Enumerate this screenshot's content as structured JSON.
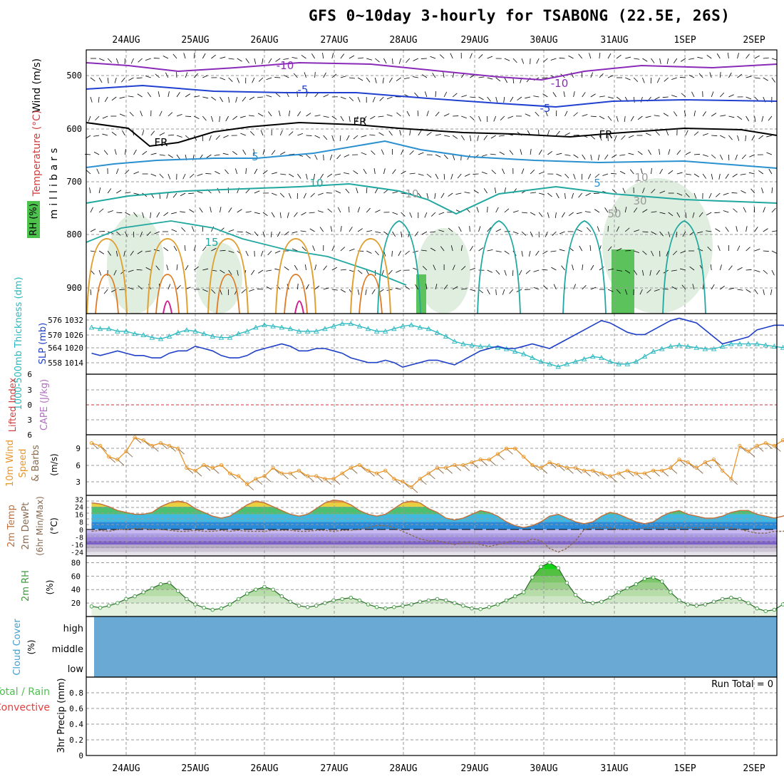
{
  "title": "GFS 0~10day 3-hourly for TSABONG (22.5E, 26S)",
  "dates": [
    "24AUG",
    "25AUG",
    "26AUG",
    "27AUG",
    "28AUG",
    "29AUG",
    "30AUG",
    "31AUG",
    "1SEP",
    "2SEP"
  ],
  "colors": {
    "grid": "#9a9a9a",
    "zero_line": "#d03030",
    "slp": "#1f3fc8",
    "thickness": "#2ab8c0",
    "wind10m": "#e8962a",
    "barb10m": "#8a6a4a",
    "temp_fill": "#c0703a",
    "dewpt": "#8a6a50",
    "rh2m": "#3c9a3c",
    "cloud": "#6aa9d4"
  },
  "panels": {
    "upper": {
      "ylabel_wind": "Wind (m/s)",
      "ylabel_temp": "Temperature (°C)",
      "ylabel_rh": "RH (%)",
      "ylabel_p": "millibars",
      "ticks": [
        "500",
        "600",
        "700",
        "800",
        "900"
      ],
      "contour_labels": [
        {
          "t": "-10",
          "c": "#8a2ab8"
        },
        {
          "t": "-10",
          "c": "#8a2ab8"
        },
        {
          "t": "-5",
          "c": "#2040d0"
        },
        {
          "t": "-5",
          "c": "#2040d0"
        },
        {
          "t": "FR",
          "c": "#000000"
        },
        {
          "t": "FR",
          "c": "#000000"
        },
        {
          "t": "FR",
          "c": "#000000"
        },
        {
          "t": "5",
          "c": "#2a90d0"
        },
        {
          "t": "5",
          "c": "#2a90d0"
        },
        {
          "t": "10",
          "c": "#20a8a0"
        },
        {
          "t": "15",
          "c": "#20a8a0"
        },
        {
          "t": "10",
          "c": "#999999"
        },
        {
          "t": "10",
          "c": "#999999"
        },
        {
          "t": "50",
          "c": "#999999"
        },
        {
          "t": "30",
          "c": "#999999"
        }
      ]
    },
    "slp": {
      "ylabel_thick": "1000-500mb Thickness (dm)",
      "ylabel_slp": "SLP (mb)",
      "ticks_thick": [
        "576",
        "570",
        "564",
        "558"
      ],
      "ticks_slp": [
        "1032",
        "1026",
        "1020",
        "1014"
      ]
    },
    "cape": {
      "ylabel_li": "Lifted Index",
      "ylabel_cape": "CAPE (J/kg)",
      "ticks": [
        "6",
        "3",
        "0",
        "3",
        "6"
      ]
    },
    "wind": {
      "ylabel1": "10m Wind",
      "ylabel2": "Speed",
      "ylabel3": "& Barbs",
      "ylabel_unit": "(m/s)",
      "ticks": [
        "9",
        "6",
        "3"
      ]
    },
    "temp": {
      "ylabel1": "2m Temp",
      "ylabel2": "2m DewPt",
      "ylabel3": "(6hr Min/Max)",
      "ylabel_unit": "(°C)",
      "ticks": [
        "32",
        "24",
        "16",
        "8",
        "0",
        "-8",
        "-16",
        "-24"
      ]
    },
    "rh": {
      "ylabel": "2m RH",
      "ylabel_unit": "(%)",
      "ticks": [
        "80",
        "60",
        "40",
        "20"
      ]
    },
    "cloud": {
      "ylabel": "Cloud Cover",
      "ylabel_unit": "(%)",
      "levels": [
        "high",
        "middle",
        "low"
      ]
    },
    "precip": {
      "ylabel_total": "Total / Rain",
      "ylabel_conv": "Convective",
      "ylabel_precip": "3hr Precip (mm)",
      "ticks": [
        "0.8",
        "0.6",
        "0.4",
        "0.2",
        "0"
      ],
      "run_total": "Run Total = 0"
    }
  },
  "chart_data": [
    {
      "type": "line",
      "name": "slp_thickness",
      "x_unit": "3-hour step from 23 AUG 12Z",
      "series": [
        {
          "name": "SLP (mb)",
          "values": [
            1017,
            1016,
            1017,
            1018,
            1017,
            1016,
            1016,
            1015,
            1015,
            1017,
            1018,
            1018,
            1020,
            1019,
            1018,
            1016,
            1015,
            1015,
            1016,
            1018,
            1019,
            1020,
            1021,
            1020,
            1018,
            1018,
            1019,
            1019,
            1018,
            1017,
            1015,
            1014,
            1013,
            1013,
            1014,
            1013,
            1011,
            1012,
            1013,
            1014,
            1014,
            1013,
            1012,
            1014,
            1016,
            1018,
            1019,
            1020,
            1019,
            1019,
            1020,
            1021,
            1020,
            1019,
            1021,
            1023,
            1025,
            1027,
            1029,
            1031,
            1030,
            1028,
            1026,
            1025,
            1025,
            1027,
            1029,
            1031,
            1032,
            1031,
            1030,
            1027,
            1024,
            1021,
            1022,
            1023,
            1024,
            1027,
            1028,
            1029,
            1029,
            1028,
            1027,
            1026,
            1026,
            1027,
            1028,
            1029,
            1030,
            1029,
            1027,
            1024,
            1025,
            1026,
            1027,
            1028,
            1029
          ]
        },
        {
          "name": "1000-500mb Thickness (dm)",
          "values": [
            572.5,
            572,
            572,
            571,
            571,
            570,
            569.5,
            568.5,
            568,
            569,
            570.5,
            571.5,
            571,
            570,
            569,
            568.5,
            568.5,
            570,
            571,
            572.5,
            573.5,
            573,
            572.5,
            572,
            571,
            571,
            571,
            572,
            573,
            574,
            574,
            573,
            572,
            571,
            571,
            572,
            573,
            573.5,
            572.5,
            572,
            570.5,
            569,
            567,
            566,
            565.5,
            565,
            565,
            564.5,
            564,
            563,
            562,
            560.5,
            559,
            558,
            557,
            558,
            559,
            560,
            561,
            560.5,
            559,
            558,
            558,
            559,
            561,
            563,
            564,
            565,
            565.5,
            565,
            564.5,
            564,
            564,
            565,
            566,
            566,
            566,
            566,
            565.5,
            565,
            564.5,
            564.5,
            565,
            566,
            567,
            568,
            568,
            567,
            566,
            566,
            566.5,
            567,
            567,
            566.5,
            566,
            565.5,
            565
          ]
        }
      ],
      "ylim_slp": [
        1008,
        1034
      ],
      "ylim_thickness": [
        554,
        578
      ]
    },
    {
      "type": "line",
      "name": "wind10m",
      "series": [
        {
          "name": "10m Wind Speed (m/s)",
          "values": [
            9.5,
            9,
            7,
            6.5,
            8,
            10.5,
            10,
            9,
            9.5,
            9,
            8.5,
            5,
            4.5,
            5.5,
            5,
            5.5,
            4,
            3.5,
            2,
            3,
            3.5,
            5,
            4,
            4,
            4.5,
            3.5,
            3.5,
            3,
            3,
            4,
            5,
            5.5,
            4.5,
            4,
            4.5,
            3,
            2.5,
            1.5,
            3,
            4,
            5,
            5,
            5.5,
            5.5,
            6,
            6.5,
            6.5,
            7.5,
            8.5,
            8.5,
            7,
            5.5,
            5,
            6,
            5.5,
            5,
            5,
            4.5,
            4.5,
            4,
            3.5,
            4,
            4.5,
            4,
            4,
            4.5,
            4.5,
            5,
            6.5,
            6,
            5,
            6,
            6.5,
            4.5,
            3,
            9,
            8,
            9,
            9.5,
            9,
            10,
            9.5,
            10,
            10.5,
            10,
            8.5,
            7.5,
            6.5,
            8,
            8.5,
            9.5,
            9.5,
            8,
            6,
            5,
            5,
            5.5,
            6,
            5.5
          ]
        }
      ],
      "ylim": [
        0,
        11
      ]
    },
    {
      "type": "area",
      "name": "temp2m",
      "series": [
        {
          "name": "2m Temp (°C)",
          "values": [
            28,
            27,
            24,
            20,
            18,
            16,
            16,
            18,
            24,
            28,
            30,
            28,
            22,
            18,
            14,
            12,
            14,
            20,
            26,
            30,
            28,
            24,
            20,
            16,
            14,
            16,
            22,
            28,
            31,
            30,
            26,
            20,
            16,
            14,
            16,
            22,
            28,
            30,
            28,
            22,
            18,
            12,
            10,
            12,
            16,
            20,
            18,
            14,
            8,
            4,
            2,
            4,
            8,
            14,
            16,
            12,
            8,
            6,
            8,
            14,
            18,
            16,
            12,
            8,
            6,
            8,
            14,
            18,
            20,
            16,
            14,
            12,
            12,
            14,
            18,
            20,
            20,
            16,
            14,
            12,
            14,
            18,
            22,
            22,
            20,
            16,
            14,
            12,
            14
          ]
        },
        {
          "name": "2m DewPt (°C)",
          "values": [
            -2,
            -1,
            -2,
            0,
            0,
            1,
            1,
            0,
            0,
            -1,
            -2,
            -2,
            -1,
            -2,
            -2,
            -1,
            -2,
            -1,
            -2,
            -2,
            -2,
            -1,
            -1,
            -1,
            -2,
            -2,
            -1,
            -1,
            -2,
            -1,
            -1,
            0,
            2,
            4,
            4,
            2,
            -2,
            -6,
            -10,
            -12,
            -12,
            -14,
            -16,
            -14,
            -14,
            -16,
            -18,
            -16,
            -14,
            -12,
            -14,
            -10,
            -12,
            -20,
            -24,
            -20,
            -12,
            0,
            2,
            2,
            2,
            0,
            0,
            0,
            2,
            2,
            2,
            2,
            2,
            2,
            2,
            2,
            2,
            2,
            2,
            0,
            -2,
            -4,
            -4,
            -2,
            -2,
            0,
            0,
            0,
            0,
            0,
            0,
            0,
            0
          ]
        }
      ],
      "ylim": [
        -28,
        36
      ]
    },
    {
      "type": "area",
      "name": "rh2m",
      "series": [
        {
          "name": "2m RH (%)",
          "values": [
            15,
            13,
            16,
            20,
            26,
            30,
            36,
            42,
            48,
            50,
            38,
            26,
            18,
            13,
            10,
            12,
            18,
            26,
            34,
            40,
            44,
            40,
            30,
            22,
            16,
            14,
            16,
            20,
            24,
            26,
            28,
            24,
            18,
            14,
            12,
            14,
            16,
            18,
            22,
            24,
            26,
            24,
            20,
            16,
            12,
            11,
            14,
            18,
            24,
            30,
            36,
            58,
            74,
            80,
            72,
            50,
            32,
            22,
            20,
            22,
            28,
            36,
            42,
            48,
            56,
            58,
            52,
            36,
            24,
            18,
            16,
            18,
            22,
            26,
            28,
            26,
            20,
            12,
            8,
            10,
            18,
            40,
            68,
            74,
            76,
            70,
            52,
            32,
            22,
            20,
            24,
            30,
            40,
            46,
            52,
            54,
            50,
            38,
            24,
            16,
            13,
            18,
            24,
            30,
            36,
            40,
            38
          ]
        }
      ],
      "ylim": [
        0,
        90
      ]
    },
    {
      "type": "bar",
      "name": "precip",
      "series": [
        {
          "name": "3hr Precip (mm)",
          "values": [
            0
          ]
        }
      ],
      "ylim": [
        0,
        1
      ]
    }
  ]
}
